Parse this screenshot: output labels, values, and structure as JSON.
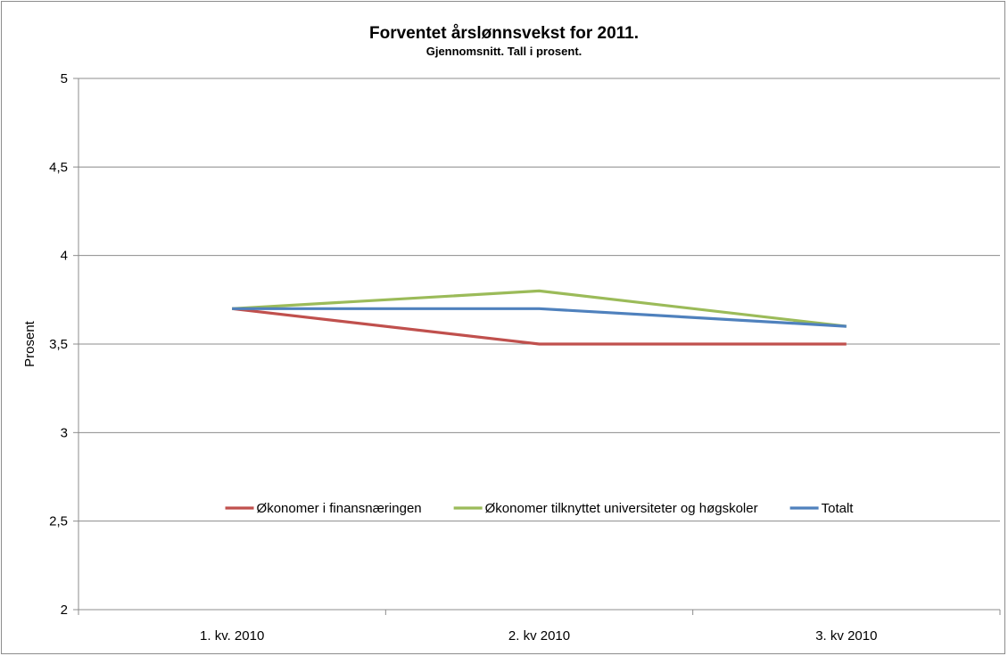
{
  "chart_data": {
    "type": "line",
    "title": "Forventet årslønnsvekst for 2011.",
    "subtitle": "Gjennomsnitt. Tall i prosent.",
    "xlabel": "",
    "ylabel": "Prosent",
    "categories": [
      "1. kv. 2010",
      "2. kv 2010",
      "3. kv 2010"
    ],
    "ylim": [
      2,
      5
    ],
    "yticks": [
      2,
      2.5,
      3,
      3.5,
      4,
      4.5,
      5
    ],
    "ytick_labels": [
      "2",
      "2,5",
      "3",
      "3,5",
      "4",
      "4,5",
      "5"
    ],
    "grid": true,
    "legend_position": "inside-bottom-center",
    "series": [
      {
        "name": "Økonomer i finansnæringen",
        "values": [
          3.7,
          3.5,
          3.5
        ],
        "color": "#c0504d"
      },
      {
        "name": "Økonomer tilknyttet universiteter og høgskoler",
        "values": [
          3.7,
          3.8,
          3.6
        ],
        "color": "#9bbb59"
      },
      {
        "name": "Totalt",
        "values": [
          3.7,
          3.7,
          3.6
        ],
        "color": "#4f81bd"
      }
    ]
  }
}
